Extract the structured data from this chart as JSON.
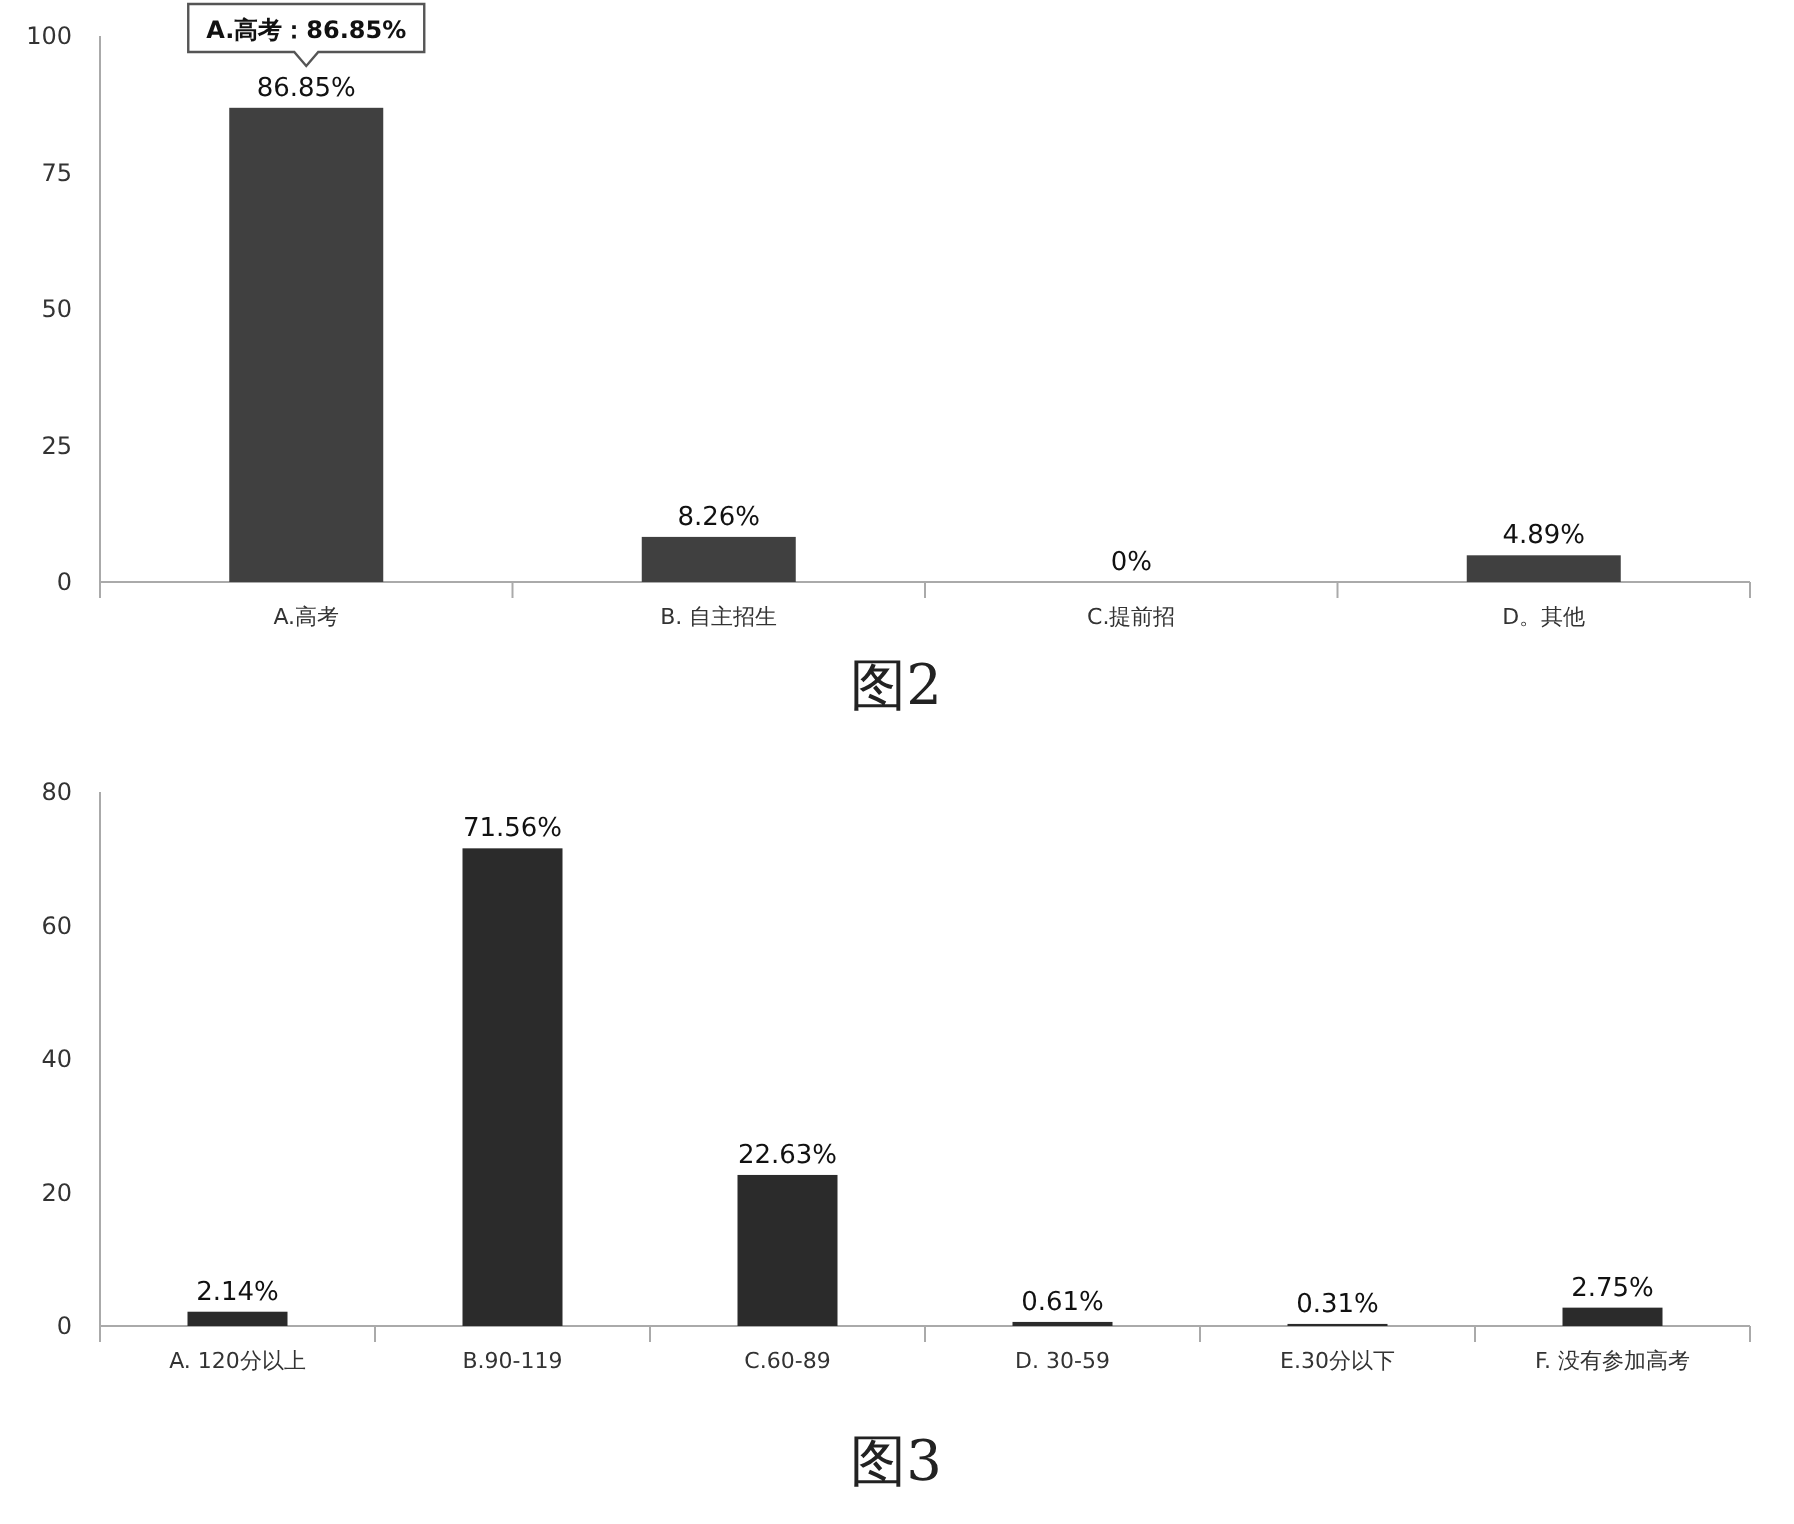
{
  "chart_data": [
    {
      "type": "bar",
      "title": "图2",
      "categories": [
        "A.高考",
        "B. 自主招生",
        "C.提前招",
        "D。其他"
      ],
      "values": [
        86.85,
        8.26,
        0,
        4.89
      ],
      "value_labels": [
        "86.85%",
        "8.26%",
        "0%",
        "4.89%"
      ],
      "color": "#404040",
      "ylim": [
        0,
        100
      ],
      "yticks": [
        0,
        25,
        50,
        75,
        100
      ],
      "grid": false,
      "annotations": [
        {
          "text": "A.高考：86.85%",
          "x": "A.高考",
          "y": 86.85
        }
      ]
    },
    {
      "type": "bar",
      "title": "图3",
      "categories": [
        "A. 120分以上",
        "B.90-119",
        "C.60-89",
        "D. 30-59",
        "E.30分以下",
        "F. 没有参加高考"
      ],
      "values": [
        2.14,
        71.56,
        22.63,
        0.61,
        0.31,
        2.75
      ],
      "value_labels": [
        "2.14%",
        "71.56%",
        "22.63%",
        "0.61%",
        "0.31%",
        "2.75%"
      ],
      "color": "#2b2b2b",
      "ylim": [
        0,
        80
      ],
      "yticks": [
        0,
        20,
        40,
        60,
        80
      ],
      "grid": false
    }
  ]
}
